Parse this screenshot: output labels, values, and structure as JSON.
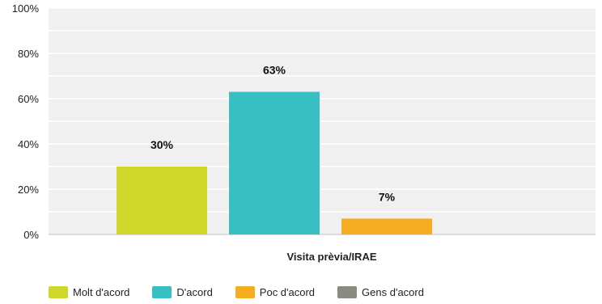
{
  "chart_data": {
    "type": "bar",
    "categories": [
      "Visita prèvia/IRAE"
    ],
    "series": [
      {
        "name": "Molt d'acord",
        "values": [
          30
        ],
        "label": "30%"
      },
      {
        "name": "D'acord",
        "values": [
          63
        ],
        "label": "63%"
      },
      {
        "name": "Poc d'acord",
        "values": [
          7
        ],
        "label": "7%"
      },
      {
        "name": "Gens d'acord",
        "values": [
          0
        ],
        "label": ""
      }
    ],
    "ylim": [
      0,
      100
    ],
    "yticks": [
      0,
      20,
      40,
      60,
      80,
      100
    ],
    "ytick_labels": [
      "0%",
      "20%",
      "40%",
      "60%",
      "80%",
      "100%"
    ],
    "title": "",
    "xlabel": "",
    "ylabel": "",
    "grid": true,
    "legend_position": "bottom-left"
  },
  "colors": {
    "series": [
      "#cfd82a",
      "#37bfc1",
      "#f6ad22",
      "#8b8b7f"
    ],
    "plot_background": "#f0f0f0",
    "gridline": "#ffffff"
  }
}
